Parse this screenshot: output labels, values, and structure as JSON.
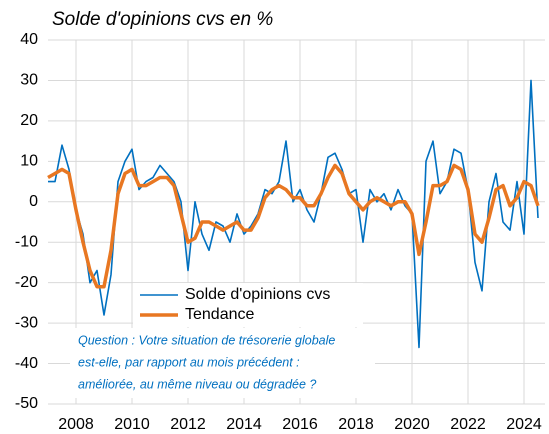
{
  "chart_data": {
    "type": "line",
    "title": "Solde d'opinions cvs en %",
    "x": [
      2007,
      2007.25,
      2007.5,
      2007.75,
      2008,
      2008.25,
      2008.5,
      2008.75,
      2009,
      2009.25,
      2009.5,
      2009.75,
      2010,
      2010.25,
      2010.5,
      2010.75,
      2011,
      2011.25,
      2011.5,
      2011.75,
      2012,
      2012.25,
      2012.5,
      2012.75,
      2013,
      2013.25,
      2013.5,
      2013.75,
      2014,
      2014.25,
      2014.5,
      2014.75,
      2015,
      2015.25,
      2015.5,
      2015.75,
      2016,
      2016.25,
      2016.5,
      2016.75,
      2017,
      2017.25,
      2017.5,
      2017.75,
      2018,
      2018.25,
      2018.5,
      2018.75,
      2019,
      2019.25,
      2019.5,
      2019.75,
      2020,
      2020.25,
      2020.5,
      2020.75,
      2021,
      2021.25,
      2021.5,
      2021.75,
      2022,
      2022.25,
      2022.5,
      2022.75,
      2023,
      2023.25,
      2023.5,
      2023.75,
      2024,
      2024.25,
      2024.5
    ],
    "series": [
      {
        "name": "Solde d'opinions cvs",
        "color": "#0070c0",
        "values": [
          5,
          5,
          14,
          8,
          -2,
          -8,
          -20,
          -17,
          -28,
          -18,
          5,
          10,
          13,
          3,
          5,
          6,
          9,
          7,
          5,
          0,
          -17,
          0,
          -8,
          -12,
          -5,
          -6,
          -10,
          -3,
          -8,
          -6,
          -3,
          3,
          2,
          5,
          15,
          0,
          3,
          -2,
          -5,
          2,
          11,
          12,
          8,
          2,
          3,
          -10,
          3,
          0,
          2,
          -2,
          3,
          -1,
          -3,
          -36,
          10,
          15,
          2,
          5,
          13,
          12,
          3,
          -15,
          -22,
          0,
          7,
          -5,
          -7,
          5,
          -8,
          30,
          -4
        ]
      },
      {
        "name": "Tendance",
        "color": "#e87722",
        "values": [
          6,
          7,
          8,
          7,
          -2,
          -10,
          -17,
          -21,
          -21,
          -12,
          2,
          7,
          8,
          4,
          4,
          5,
          6,
          6,
          4,
          -3,
          -10,
          -9,
          -5,
          -5,
          -6,
          -7,
          -6,
          -5,
          -7,
          -7,
          -4,
          1,
          3,
          4,
          3,
          1,
          1,
          -1,
          -1,
          2,
          6,
          9,
          7,
          2,
          0,
          -2,
          0,
          1,
          0,
          -1,
          0,
          0,
          -3,
          -13,
          -5,
          4,
          4,
          5,
          9,
          8,
          3,
          -8,
          -10,
          -4,
          3,
          4,
          -1,
          1,
          5,
          4,
          -1
        ]
      }
    ],
    "annotation": [
      "Question : Votre situation de trésorerie globale",
      "est-elle, par rapport au mois précédent :",
      "améliorée, au même niveau ou dégradée ?"
    ],
    "xlim": [
      2007,
      2024.75
    ],
    "xticks": [
      2008,
      2010,
      2012,
      2014,
      2016,
      2018,
      2020,
      2022,
      2024
    ],
    "ylim": [
      -50,
      40
    ],
    "yticks": [
      -50,
      -40,
      -30,
      -20,
      -10,
      0,
      10,
      20,
      30,
      40
    ],
    "grid": true
  }
}
